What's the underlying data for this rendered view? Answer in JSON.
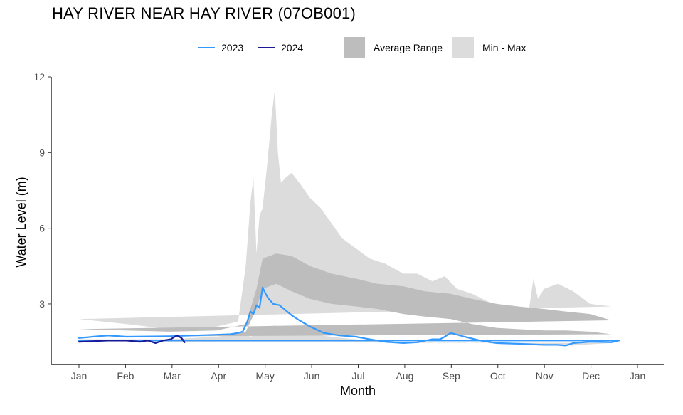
{
  "chart_data": {
    "type": "line",
    "title": "HAY RIVER NEAR HAY RIVER (07OB001)",
    "xlabel": "Month",
    "ylabel": "Water Level (m)",
    "x_ticks": [
      "Jan",
      "Feb",
      "Mar",
      "Apr",
      "May",
      "Jun",
      "Jul",
      "Aug",
      "Sep",
      "Oct",
      "Nov",
      "Dec",
      "Jan"
    ],
    "y_ticks": [
      3,
      6,
      9,
      12
    ],
    "ylim": [
      0.6,
      12
    ],
    "grid": false,
    "legend_position": "top",
    "legend": [
      {
        "label": "2023",
        "kind": "line",
        "color": "#3399ff"
      },
      {
        "label": "2024",
        "kind": "line",
        "color": "#1a1a99"
      },
      {
        "label": "Average Range",
        "kind": "band",
        "color": "#bdbdbd"
      },
      {
        "label": "Min - Max",
        "kind": "band",
        "color": "#dcdcdc"
      }
    ],
    "colors": {
      "2023": "#3399ff",
      "2024": "#1a1a99",
      "average_range": "#bdbdbd",
      "min_max": "#dcdcdc"
    },
    "min_max_band": {
      "x": [
        "2023-01-01",
        "2023-02-01",
        "2023-03-01",
        "2023-04-01",
        "2023-04-15",
        "2023-04-20",
        "2023-04-23",
        "2023-04-25",
        "2023-04-27",
        "2023-04-29",
        "2023-05-01",
        "2023-05-04",
        "2023-05-07",
        "2023-05-09",
        "2023-05-11",
        "2023-05-13",
        "2023-05-16",
        "2023-05-20",
        "2023-05-25",
        "2023-06-01",
        "2023-06-08",
        "2023-06-15",
        "2023-06-22",
        "2023-07-01",
        "2023-07-10",
        "2023-07-20",
        "2023-08-01",
        "2023-08-10",
        "2023-08-20",
        "2023-08-28",
        "2023-09-05",
        "2023-09-15",
        "2023-09-25",
        "2023-10-05",
        "2023-10-15",
        "2023-10-22",
        "2023-10-25",
        "2023-10-28",
        "2023-11-01",
        "2023-11-10",
        "2023-11-20",
        "2023-12-01",
        "2023-12-15",
        "2024-01-01"
      ],
      "max": [
        2.4,
        2.2,
        2.0,
        2.1,
        2.3,
        4.5,
        7.0,
        8.0,
        5.0,
        6.5,
        6.8,
        8.5,
        10.5,
        11.5,
        9.0,
        7.8,
        8.0,
        8.2,
        7.8,
        7.2,
        6.8,
        6.2,
        5.6,
        5.2,
        4.8,
        4.6,
        4.2,
        4.2,
        3.9,
        4.1,
        3.6,
        3.4,
        3.1,
        2.9,
        2.8,
        2.75,
        4.0,
        3.2,
        3.6,
        3.8,
        3.5,
        3.0,
        2.9,
        2.4
      ],
      "min": [
        1.6,
        1.6,
        1.6,
        1.7,
        1.8,
        1.8,
        1.7,
        1.75,
        1.8,
        1.9,
        2.0,
        2.0,
        2.1,
        2.15,
        2.1,
        2.05,
        2.0,
        1.9,
        1.85,
        1.8,
        1.75,
        1.7,
        1.65,
        1.6,
        1.55,
        1.5,
        1.45,
        1.45,
        1.45,
        1.5,
        1.5,
        1.45,
        1.45,
        1.4,
        1.4,
        1.4,
        1.4,
        1.35,
        1.35,
        1.35,
        1.35,
        1.4,
        1.45,
        1.5
      ]
    },
    "average_range_band": {
      "x": [
        "2023-01-01",
        "2023-02-01",
        "2023-03-01",
        "2023-04-01",
        "2023-04-20",
        "2023-04-27",
        "2023-05-01",
        "2023-05-10",
        "2023-05-20",
        "2023-06-01",
        "2023-06-15",
        "2023-07-01",
        "2023-07-15",
        "2023-08-01",
        "2023-08-15",
        "2023-09-01",
        "2023-09-15",
        "2023-10-01",
        "2023-10-15",
        "2023-11-01",
        "2023-11-15",
        "2023-12-01",
        "2023-12-15",
        "2024-01-01"
      ],
      "upper": [
        2.0,
        1.95,
        1.9,
        1.95,
        2.2,
        3.6,
        4.8,
        5.0,
        4.9,
        4.5,
        4.2,
        4.0,
        3.8,
        3.7,
        3.5,
        3.4,
        3.2,
        3.0,
        2.9,
        2.8,
        2.7,
        2.6,
        2.35,
        2.0
      ],
      "lower": [
        1.7,
        1.7,
        1.7,
        1.75,
        1.9,
        2.8,
        3.6,
        3.8,
        3.5,
        3.2,
        3.0,
        2.9,
        2.8,
        2.6,
        2.5,
        2.4,
        2.2,
        2.05,
        2.0,
        1.95,
        1.95,
        1.9,
        1.8,
        1.7
      ]
    },
    "series": [
      {
        "name": "2023",
        "x": [
          "2023-01-01",
          "2023-01-10",
          "2023-01-20",
          "2023-02-01",
          "2023-03-01",
          "2023-04-01",
          "2023-04-10",
          "2023-04-15",
          "2023-04-18",
          "2023-04-21",
          "2023-04-23",
          "2023-04-25",
          "2023-04-27",
          "2023-04-29",
          "2023-05-01",
          "2023-05-03",
          "2023-05-05",
          "2023-05-08",
          "2023-05-12",
          "2023-05-16",
          "2023-05-20",
          "2023-05-25",
          "2023-06-01",
          "2023-06-10",
          "2023-06-20",
          "2023-07-01",
          "2023-07-10",
          "2023-07-20",
          "2023-08-01",
          "2023-08-10",
          "2023-08-20",
          "2023-08-25",
          "2023-08-28",
          "2023-09-01",
          "2023-09-10",
          "2023-09-20",
          "2023-10-01",
          "2023-10-15",
          "2023-11-01",
          "2023-11-10",
          "2023-11-15",
          "2023-11-20",
          "2023-12-01",
          "2023-12-15",
          "2023-12-20",
          "2024-01-01"
        ],
        "values": [
          1.65,
          1.7,
          1.75,
          1.7,
          1.72,
          1.78,
          1.8,
          1.85,
          1.9,
          2.3,
          2.7,
          2.6,
          2.95,
          2.85,
          3.65,
          3.4,
          3.2,
          3.0,
          2.95,
          2.75,
          2.55,
          2.35,
          2.1,
          1.85,
          1.75,
          1.7,
          1.6,
          1.5,
          1.45,
          1.48,
          1.6,
          1.6,
          1.7,
          1.85,
          1.7,
          1.55,
          1.45,
          1.42,
          1.38,
          1.38,
          1.35,
          1.45,
          1.5,
          1.48,
          1.55,
          1.55
        ]
      },
      {
        "name": "2024",
        "x": [
          "2024-01-01",
          "2024-01-10",
          "2024-01-20",
          "2024-02-01",
          "2024-02-10",
          "2024-02-15",
          "2024-02-20",
          "2024-02-25",
          "2024-03-01",
          "2024-03-05",
          "2024-03-08",
          "2024-03-10"
        ],
        "values": [
          1.5,
          1.52,
          1.55,
          1.55,
          1.5,
          1.55,
          1.45,
          1.55,
          1.6,
          1.75,
          1.65,
          1.48
        ]
      }
    ]
  }
}
